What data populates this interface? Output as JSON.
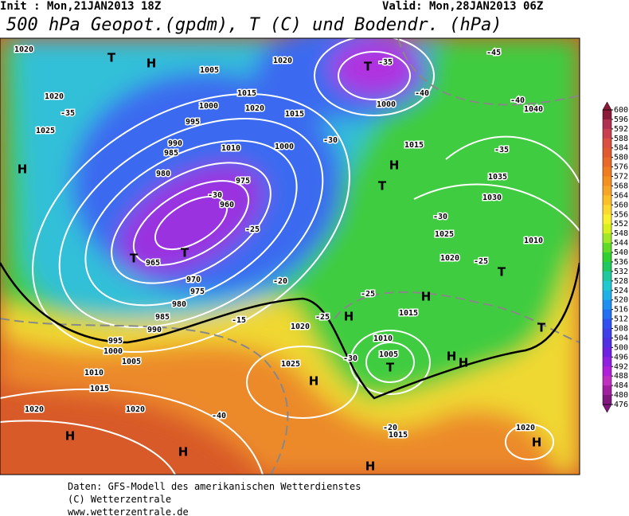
{
  "header": {
    "init": "Init : Mon,21JAN2013 18Z",
    "valid": "Valid: Mon,28JAN2013 06Z",
    "title": "500 hPa Geopot.(gpdm), T (C) und Bodendr. (hPa)"
  },
  "colorbar": {
    "ticks": [
      600,
      596,
      592,
      588,
      584,
      580,
      576,
      572,
      568,
      564,
      560,
      556,
      552,
      548,
      544,
      540,
      536,
      532,
      528,
      524,
      520,
      516,
      512,
      508,
      504,
      500,
      496,
      492,
      488,
      484,
      480,
      476
    ],
    "colors": [
      "#8b1a3a",
      "#b03050",
      "#c84050",
      "#d85040",
      "#e05a30",
      "#e86a28",
      "#ef7c20",
      "#f39020",
      "#f7a526",
      "#fbbf2a",
      "#fdd830",
      "#f8f030",
      "#d8f020",
      "#a0e828",
      "#60dc28",
      "#30d030",
      "#20c860",
      "#20c8a0",
      "#20c8d0",
      "#20b0e8",
      "#2090f0",
      "#2070f0",
      "#3050f0",
      "#4040e8",
      "#5030e0",
      "#7020e0",
      "#9020e0",
      "#b020d8",
      "#c030c0",
      "#a020a0",
      "#801880"
    ]
  },
  "map_labels": [
    "1020",
    "T",
    "H",
    "1005",
    "1020",
    "T",
    "-35",
    "-45",
    "1020",
    "-35",
    "1000",
    "1015",
    "1020",
    "1015",
    "1000",
    "-40",
    "-40",
    "1040",
    "1025",
    "995",
    "990",
    "985",
    "1010",
    "1000",
    "-30",
    "1015",
    "-35",
    "H",
    "980",
    "975",
    "H",
    "T",
    "1035",
    "-30",
    "960",
    "1030",
    "-30",
    "1025",
    "-25",
    "T",
    "T",
    "965",
    "1020",
    "-25",
    "1010",
    "T",
    "970",
    "-20",
    "-25",
    "975",
    "H",
    "1015",
    "980",
    "985",
    "H",
    "-25",
    "-15",
    "1020",
    "990",
    "T",
    "1010",
    "995",
    "1000",
    "1005",
    "-30",
    "1005",
    "T",
    "H",
    "H",
    "1010",
    "1025",
    "H",
    "1015",
    "1020",
    "1020",
    "-40",
    "-20",
    "1015",
    "1020",
    "H",
    "H",
    "H",
    "H"
  ],
  "footer": [
    "Daten: GFS-Modell des amerikanischen Wetterdienstes",
    "(C) Wetterzentrale",
    "www.wetterzentrale.de"
  ]
}
